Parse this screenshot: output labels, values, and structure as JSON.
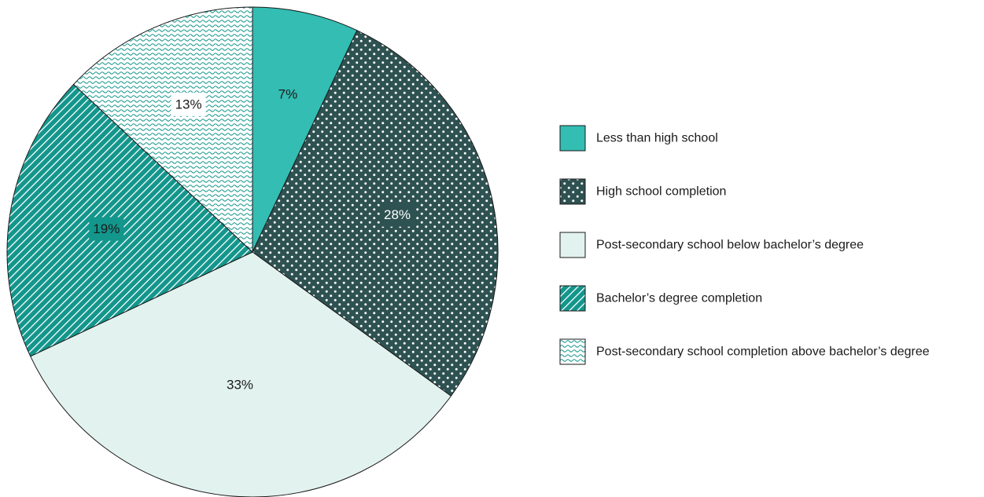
{
  "chart_data": {
    "type": "pie",
    "title": "",
    "start": "top",
    "direction": "clockwise",
    "legend_position": "right",
    "slices": [
      {
        "name": "Less than high school",
        "value": 7,
        "label": "7%",
        "fill": "#33bdb3",
        "pattern": "solid",
        "label_color": "#1a1a1a",
        "label_bg": ""
      },
      {
        "name": "High school completion",
        "value": 28,
        "label": "28%",
        "fill": "#2e5151",
        "pattern": "dots",
        "label_color": "#ffffff",
        "label_bg": "#2e5151"
      },
      {
        "name": "Post-secondary school below bachelor’s degree",
        "value": 33,
        "label": "33%",
        "fill": "#e2f2ef",
        "pattern": "solid",
        "label_color": "#1a1a1a",
        "label_bg": ""
      },
      {
        "name": "Bachelor’s degree completion",
        "value": 19,
        "label": "19%",
        "fill": "#13968c",
        "pattern": "diagonal",
        "label_color": "#1a1a1a",
        "label_bg": "#13968c"
      },
      {
        "name": "Post-secondary school completion above bachelor’s degree",
        "value": 13,
        "label": "13%",
        "fill": "#13968c",
        "pattern": "wave",
        "label_color": "#1a1a1a",
        "label_bg": "#ffffff"
      }
    ]
  }
}
